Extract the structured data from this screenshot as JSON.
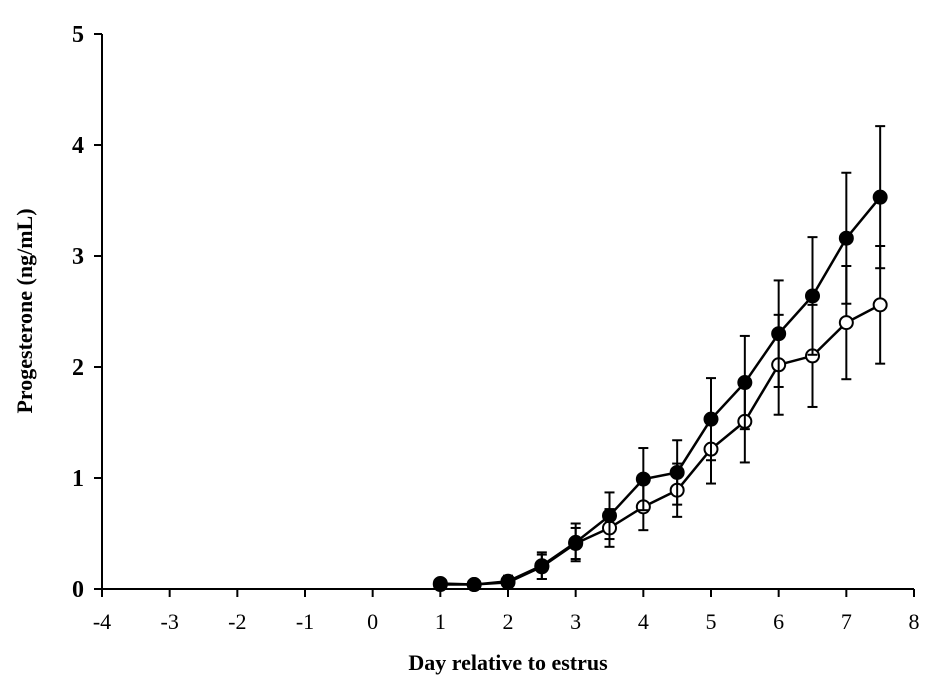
{
  "chart_data": {
    "type": "line",
    "title": "",
    "xlabel": "Day relative to estrus",
    "ylabel": "Progesterone (ng/mL)",
    "xlim": [
      -4,
      8
    ],
    "ylim": [
      0,
      5
    ],
    "x_ticks": [
      -4,
      -3,
      -2,
      -1,
      0,
      1,
      2,
      3,
      4,
      5,
      6,
      7,
      8
    ],
    "y_ticks": [
      0,
      1,
      2,
      3,
      4,
      5
    ],
    "grid": false,
    "legend": "none",
    "x": [
      1,
      1.5,
      2,
      2.5,
      3,
      3.5,
      4,
      4.5,
      5,
      5.5,
      6,
      6.5,
      7,
      7.5
    ],
    "series": [
      {
        "marker": "filled-circle",
        "color": "#000000",
        "values": [
          0.05,
          0.04,
          0.07,
          0.21,
          0.42,
          0.66,
          0.99,
          1.05,
          1.53,
          1.86,
          2.3,
          2.64,
          3.16,
          3.53
        ],
        "error": [
          0.04,
          0.04,
          0.05,
          0.12,
          0.17,
          0.21,
          0.28,
          0.29,
          0.37,
          0.42,
          0.48,
          0.53,
          0.59,
          0.64
        ]
      },
      {
        "marker": "open-circle",
        "color": "#000000",
        "values": [
          0.04,
          0.04,
          0.06,
          0.2,
          0.41,
          0.55,
          0.74,
          0.89,
          1.26,
          1.51,
          2.02,
          2.1,
          2.4,
          2.56
        ],
        "error": [
          0.04,
          0.04,
          0.04,
          0.11,
          0.14,
          0.17,
          0.21,
          0.24,
          0.31,
          0.37,
          0.45,
          0.46,
          0.51,
          0.53
        ]
      }
    ]
  }
}
